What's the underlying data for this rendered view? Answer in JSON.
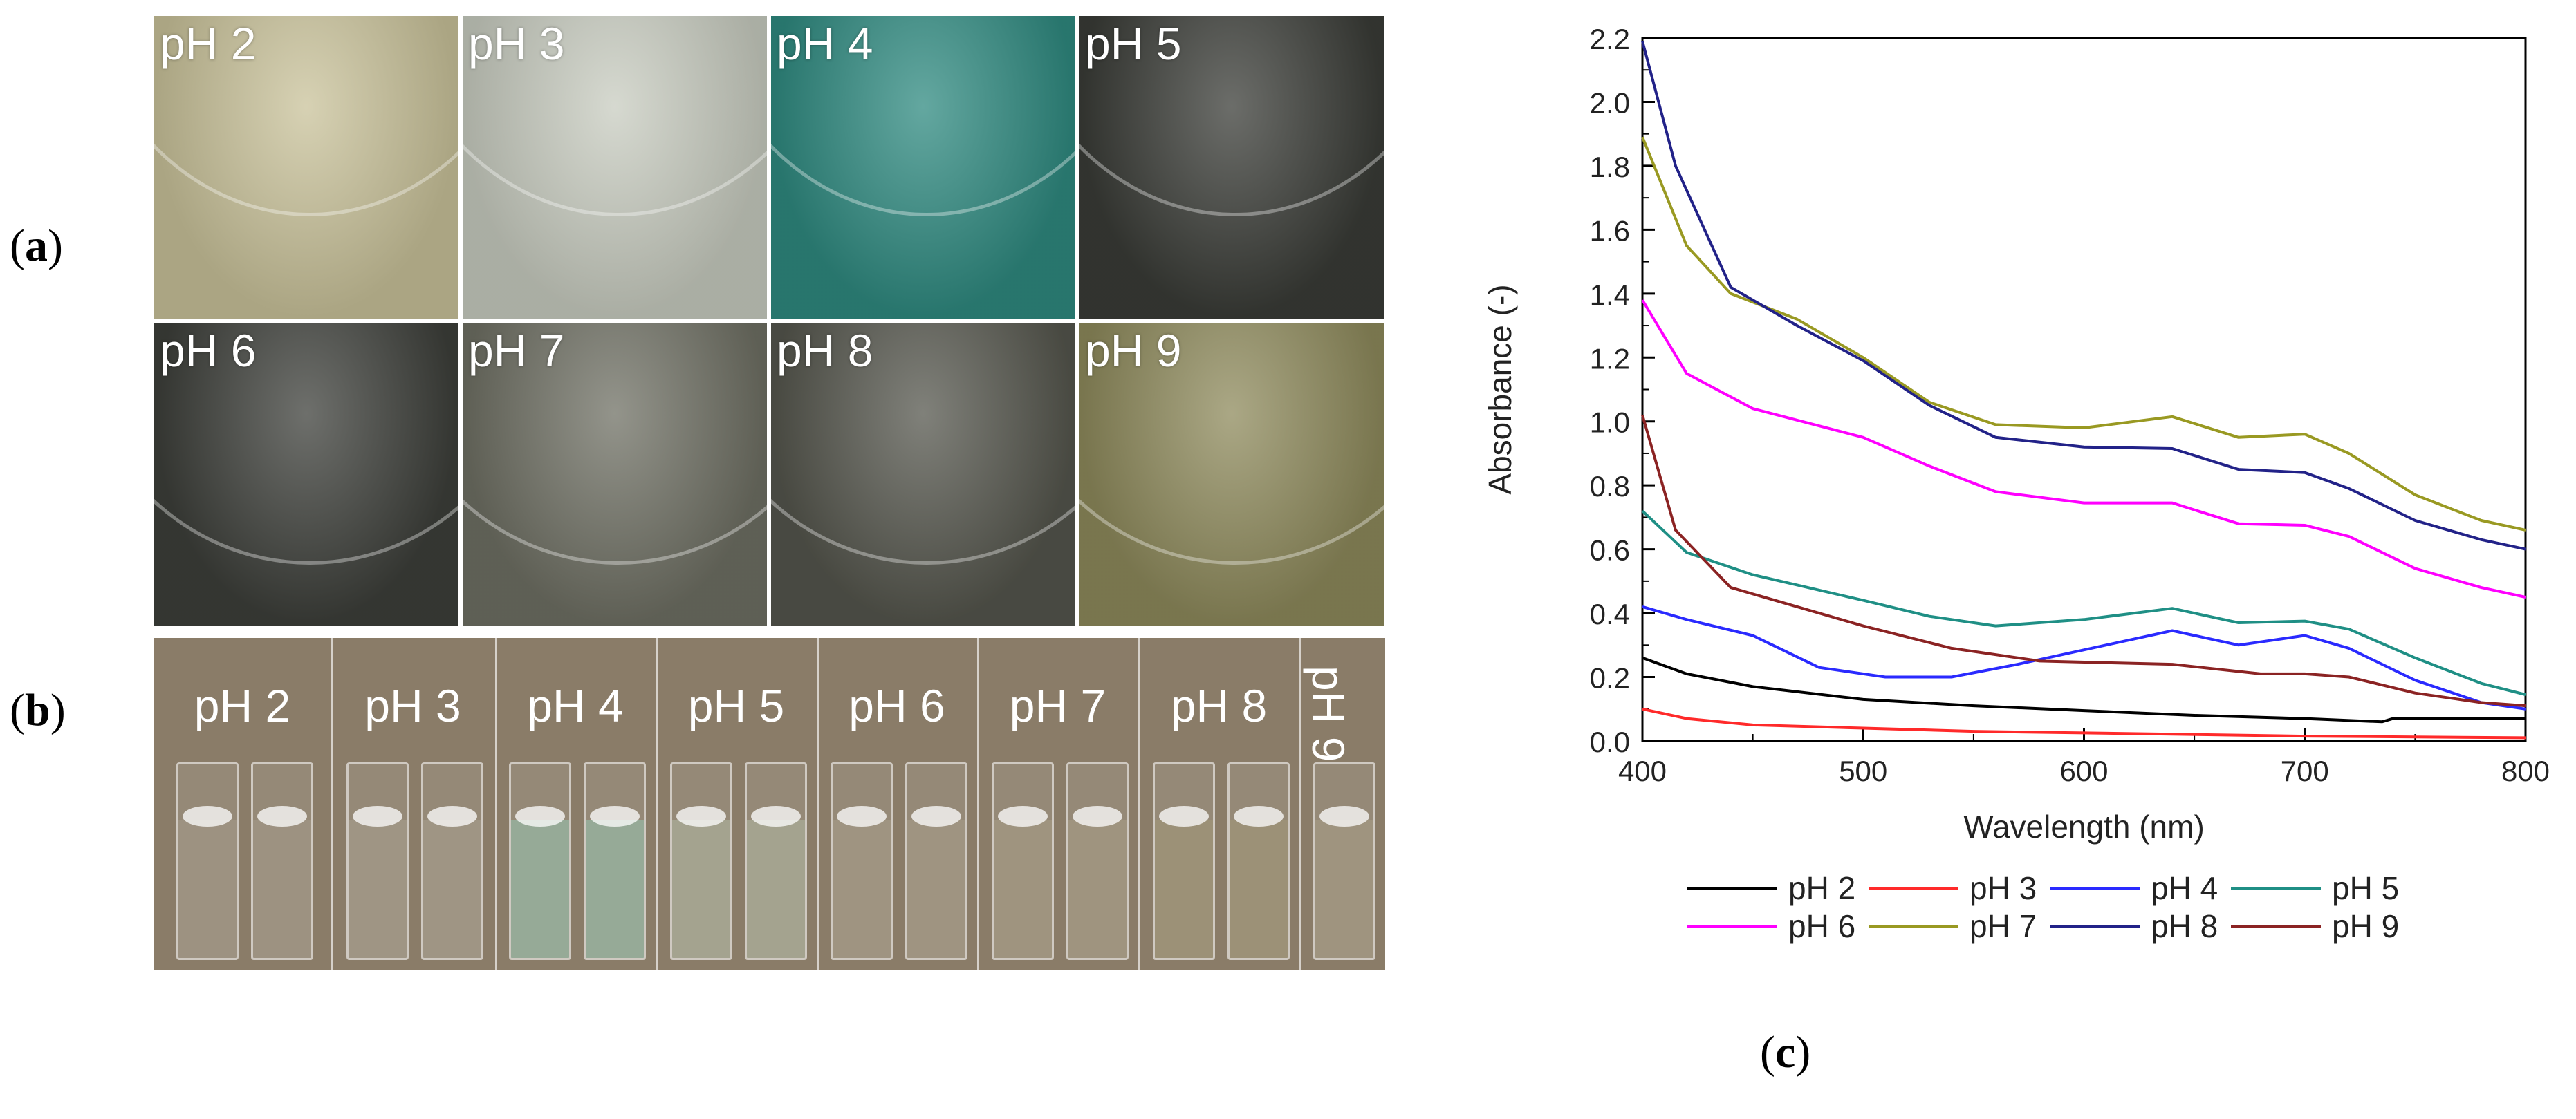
{
  "panels": {
    "a": "(a)",
    "b": "(b)",
    "c": "(c)"
  },
  "photos": [
    {
      "label": "pH 2",
      "bg": "#c9c29a"
    },
    {
      "label": "pH 3",
      "bg": "#c8ccc0"
    },
    {
      "label": "pH 4",
      "bg": "#2f8a80"
    },
    {
      "label": "pH 5",
      "bg": "#3a3c37"
    },
    {
      "label": "pH 6",
      "bg": "#3d3f3a"
    },
    {
      "label": "pH 7",
      "bg": "#6f7064"
    },
    {
      "label": "pH 8",
      "bg": "#55564d"
    },
    {
      "label": "pH 9",
      "bg": "#8e8a5c"
    }
  ],
  "cuvettes": [
    {
      "label": "pH 2",
      "tint": "rgba(255,255,255,0.08)"
    },
    {
      "label": "pH 3",
      "tint": "rgba(255,255,255,0.10)"
    },
    {
      "label": "pH 4",
      "tint": "rgba(150,210,190,0.45)"
    },
    {
      "label": "pH 5",
      "tint": "rgba(200,225,200,0.30)"
    },
    {
      "label": "pH 6",
      "tint": "rgba(190,185,160,0.25)"
    },
    {
      "label": "pH 7",
      "tint": "rgba(190,185,150,0.25)"
    },
    {
      "label": "pH 8",
      "tint": "rgba(170,160,120,0.35)"
    },
    {
      "label": "pH 9",
      "tint": "rgba(190,185,150,0.25)"
    }
  ],
  "chart_data": {
    "type": "line",
    "xlabel": "Wavelength (nm)",
    "ylabel": "Absorbance (-)",
    "xlim": [
      400,
      800
    ],
    "ylim": [
      0.0,
      2.2
    ],
    "xticks": [
      "400",
      "500",
      "600",
      "700",
      "800"
    ],
    "yticks": [
      "0.0",
      "0.2",
      "0.4",
      "0.6",
      "0.8",
      "1.0",
      "1.2",
      "1.4",
      "1.6",
      "1.8",
      "2.0",
      "2.2"
    ],
    "legend_position": "bottom",
    "grid": false,
    "series": [
      {
        "name": "pH 2",
        "color": "#000000",
        "points": [
          [
            400,
            0.26
          ],
          [
            420,
            0.21
          ],
          [
            450,
            0.17
          ],
          [
            500,
            0.13
          ],
          [
            550,
            0.11
          ],
          [
            600,
            0.095
          ],
          [
            650,
            0.08
          ],
          [
            700,
            0.07
          ],
          [
            735,
            0.06
          ],
          [
            740,
            0.07
          ],
          [
            800,
            0.07
          ]
        ]
      },
      {
        "name": "pH 3",
        "color": "#ff2a2a",
        "points": [
          [
            400,
            0.1
          ],
          [
            420,
            0.07
          ],
          [
            450,
            0.05
          ],
          [
            500,
            0.04
          ],
          [
            550,
            0.03
          ],
          [
            600,
            0.025
          ],
          [
            700,
            0.015
          ],
          [
            800,
            0.01
          ]
        ]
      },
      {
        "name": "pH 4",
        "color": "#2a2aff",
        "points": [
          [
            400,
            0.42
          ],
          [
            420,
            0.38
          ],
          [
            450,
            0.33
          ],
          [
            480,
            0.23
          ],
          [
            510,
            0.2
          ],
          [
            540,
            0.2
          ],
          [
            570,
            0.24
          ],
          [
            610,
            0.3
          ],
          [
            640,
            0.345
          ],
          [
            670,
            0.3
          ],
          [
            700,
            0.33
          ],
          [
            720,
            0.29
          ],
          [
            750,
            0.19
          ],
          [
            780,
            0.12
          ],
          [
            800,
            0.1
          ]
        ]
      },
      {
        "name": "pH 5",
        "color": "#1f8f85",
        "points": [
          [
            400,
            0.72
          ],
          [
            420,
            0.59
          ],
          [
            450,
            0.52
          ],
          [
            500,
            0.44
          ],
          [
            530,
            0.39
          ],
          [
            560,
            0.36
          ],
          [
            600,
            0.38
          ],
          [
            640,
            0.415
          ],
          [
            670,
            0.37
          ],
          [
            700,
            0.375
          ],
          [
            720,
            0.35
          ],
          [
            750,
            0.26
          ],
          [
            780,
            0.18
          ],
          [
            800,
            0.145
          ]
        ]
      },
      {
        "name": "pH 6",
        "color": "#ff00ff",
        "points": [
          [
            400,
            1.38
          ],
          [
            420,
            1.15
          ],
          [
            450,
            1.04
          ],
          [
            500,
            0.95
          ],
          [
            530,
            0.86
          ],
          [
            560,
            0.78
          ],
          [
            600,
            0.745
          ],
          [
            640,
            0.745
          ],
          [
            670,
            0.68
          ],
          [
            700,
            0.675
          ],
          [
            720,
            0.64
          ],
          [
            750,
            0.54
          ],
          [
            780,
            0.48
          ],
          [
            800,
            0.45
          ]
        ]
      },
      {
        "name": "pH 7",
        "color": "#999922",
        "points": [
          [
            400,
            1.89
          ],
          [
            420,
            1.55
          ],
          [
            440,
            1.4
          ],
          [
            470,
            1.32
          ],
          [
            500,
            1.2
          ],
          [
            530,
            1.06
          ],
          [
            560,
            0.99
          ],
          [
            600,
            0.98
          ],
          [
            640,
            1.015
          ],
          [
            670,
            0.95
          ],
          [
            700,
            0.96
          ],
          [
            720,
            0.9
          ],
          [
            750,
            0.77
          ],
          [
            780,
            0.69
          ],
          [
            800,
            0.66
          ]
        ]
      },
      {
        "name": "pH 8",
        "color": "#222288",
        "points": [
          [
            400,
            2.19
          ],
          [
            415,
            1.8
          ],
          [
            440,
            1.42
          ],
          [
            470,
            1.3
          ],
          [
            500,
            1.19
          ],
          [
            530,
            1.05
          ],
          [
            560,
            0.95
          ],
          [
            600,
            0.92
          ],
          [
            640,
            0.915
          ],
          [
            670,
            0.85
          ],
          [
            700,
            0.84
          ],
          [
            720,
            0.79
          ],
          [
            750,
            0.69
          ],
          [
            780,
            0.63
          ],
          [
            800,
            0.6
          ]
        ]
      },
      {
        "name": "pH 9",
        "color": "#8b2323",
        "points": [
          [
            400,
            1.02
          ],
          [
            415,
            0.66
          ],
          [
            440,
            0.48
          ],
          [
            470,
            0.42
          ],
          [
            500,
            0.36
          ],
          [
            540,
            0.29
          ],
          [
            580,
            0.25
          ],
          [
            640,
            0.24
          ],
          [
            680,
            0.21
          ],
          [
            700,
            0.21
          ],
          [
            720,
            0.2
          ],
          [
            750,
            0.15
          ],
          [
            780,
            0.12
          ],
          [
            800,
            0.11
          ]
        ]
      }
    ]
  }
}
